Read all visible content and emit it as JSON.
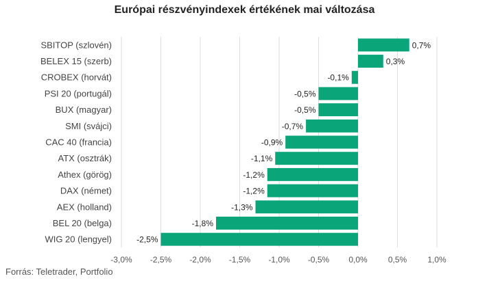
{
  "chart_data": {
    "type": "bar",
    "orientation": "horizontal",
    "title": "Európai részvényindexek értékének mai változása",
    "categories": [
      "SBITOP (szlovén)",
      "BELEX 15 (szerb)",
      "CROBEX (horvát)",
      "PSI 20 (portugál)",
      "BUX (magyar)",
      "SMI (svájci)",
      "CAC 40 (francia)",
      "ATX (osztrák)",
      "Athex (görög)",
      "DAX (német)",
      "AEX (holland)",
      "BEL 20 (belga)",
      "WIG 20 (lengyel)"
    ],
    "values": [
      0.65,
      0.32,
      -0.08,
      -0.5,
      -0.5,
      -0.66,
      -0.92,
      -1.05,
      -1.15,
      -1.15,
      -1.3,
      -1.8,
      -2.5
    ],
    "value_labels": [
      "0,7%",
      "0,3%",
      "-0,1%",
      "-0,5%",
      "-0,5%",
      "-0,7%",
      "-0,9%",
      "-1,1%",
      "-1,2%",
      "-1,2%",
      "-1,3%",
      "-1,8%",
      "-2,5%"
    ],
    "xlim": [
      -3.0,
      1.0
    ],
    "x_ticks": [
      -3.0,
      -2.5,
      -2.0,
      -1.5,
      -1.0,
      -0.5,
      0.0,
      0.5,
      1.0
    ],
    "x_tick_labels": [
      "-3,0%",
      "-2,5%",
      "-2,0%",
      "-1,5%",
      "-1,0%",
      "-0,5%",
      "0,0%",
      "0,5%",
      "1,0%"
    ],
    "grid": "vertical",
    "bar_color": "#0aa578",
    "xlabel": "",
    "ylabel": ""
  },
  "source": "Forrás: Teletrader, Portfolio"
}
